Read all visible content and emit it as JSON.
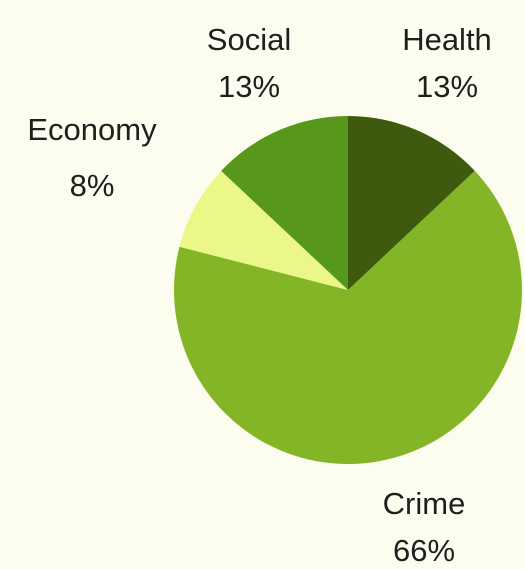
{
  "chart_data": {
    "type": "pie",
    "title": "",
    "start_angle_deg": 90,
    "direction": "clockwise",
    "slices": [
      {
        "label": "Health",
        "value": 13,
        "value_label": "13%",
        "color": "#3e5a0e"
      },
      {
        "label": "Crime",
        "value": 66,
        "value_label": "66%",
        "color": "#84b526"
      },
      {
        "label": "Economy",
        "value": 8,
        "value_label": "8%",
        "color": "#ebf787"
      },
      {
        "label": "Social",
        "value": 13,
        "value_label": "13%",
        "color": "#57981c"
      }
    ]
  },
  "colors": {
    "background": "#fdfdef",
    "text": "#1f1f1f"
  }
}
